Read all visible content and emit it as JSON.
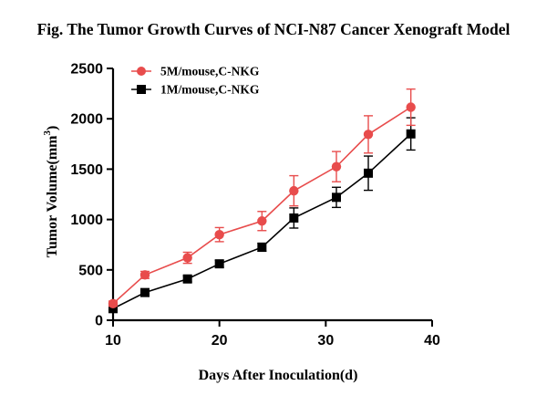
{
  "chart_data": {
    "type": "line",
    "title": "Fig. The Tumor Growth Curves of NCI-N87 Cancer Xenograft Model",
    "xlabel": "Days After Inoculation(d)",
    "ylabel_main": "Tumor Volume(mm",
    "ylabel_sup": "3",
    "ylabel_close": ")",
    "xlim": [
      10,
      40
    ],
    "ylim": [
      0,
      2500
    ],
    "xticks": [
      "10",
      "20",
      "30",
      "40"
    ],
    "yticks": [
      "0",
      "500",
      "1000",
      "1500",
      "2000",
      "2500"
    ],
    "xtick_values": [
      10,
      20,
      30,
      40
    ],
    "ytick_values": [
      0,
      500,
      1000,
      1500,
      2000,
      2500
    ],
    "grid": false,
    "legend_position": "top-left",
    "x": [
      10,
      13,
      17,
      20,
      24,
      27,
      31,
      34,
      38
    ],
    "series": [
      {
        "name": "5M/mouse,C-NKG",
        "color": "#e84c4c",
        "marker": "circle",
        "values": [
          165,
          450,
          620,
          850,
          985,
          1285,
          1525,
          1845,
          2115
        ],
        "errors": [
          25,
          35,
          55,
          70,
          95,
          150,
          150,
          185,
          180
        ]
      },
      {
        "name": "1M/mouse,C-NKG",
        "color": "#000000",
        "marker": "square",
        "values": [
          115,
          275,
          410,
          560,
          725,
          1015,
          1220,
          1460,
          1850
        ],
        "errors": [
          20,
          25,
          30,
          35,
          40,
          100,
          100,
          170,
          160
        ]
      }
    ]
  }
}
